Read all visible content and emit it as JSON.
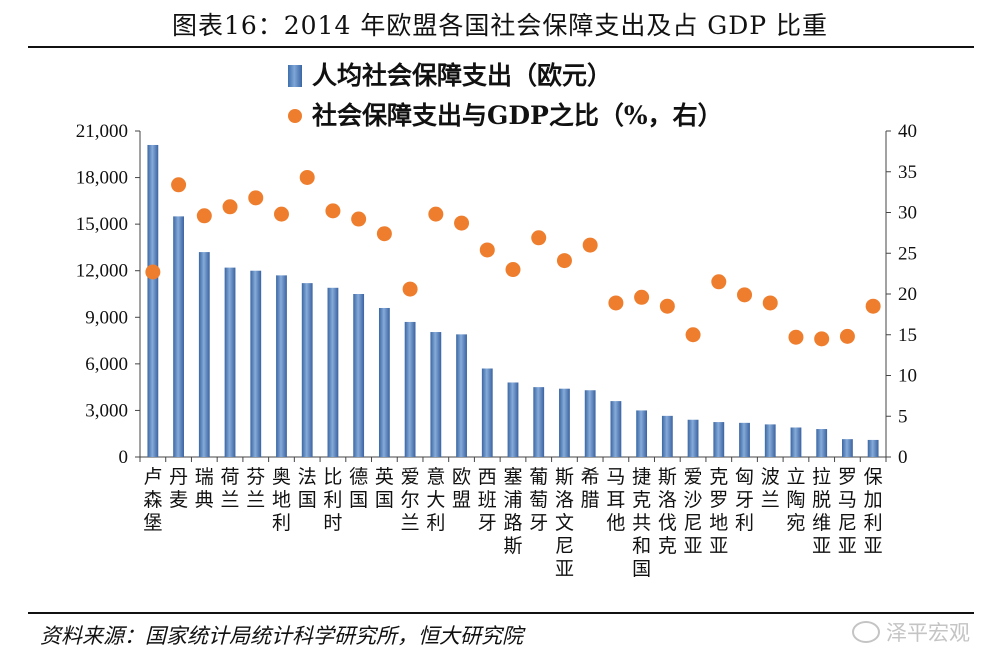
{
  "chart_data": {
    "type": "bar",
    "title": "图表16：2014年欧盟各国社会保障支出及占GDP比重",
    "categories": [
      "卢森堡",
      "丹麦",
      "瑞典",
      "荷兰",
      "芬兰",
      "奥地利",
      "法国",
      "比利时",
      "德国",
      "英国",
      "爱尔兰",
      "意大利",
      "欧盟",
      "西班牙",
      "塞浦路斯",
      "葡萄牙",
      "斯洛文尼亚",
      "希腊",
      "马耳他",
      "捷克共和国",
      "斯洛伐克",
      "爱沙尼亚",
      "克罗地亚",
      "匈牙利",
      "波兰",
      "立陶宛",
      "拉脱维亚",
      "罗马尼亚",
      "保加利亚"
    ],
    "series": [
      {
        "name": "人均社会保障支出（欧元）",
        "kind": "bar",
        "axis": "left",
        "color": "#4a78b5",
        "values": [
          20100,
          15500,
          13200,
          12200,
          12000,
          11700,
          11200,
          10900,
          10500,
          9600,
          8700,
          8050,
          7900,
          5700,
          4800,
          4500,
          4400,
          4300,
          3600,
          3000,
          2650,
          2400,
          2250,
          2200,
          2100,
          1900,
          1800,
          1150,
          1100
        ]
      },
      {
        "name": "社会保障支出与GDP之比（%，右）",
        "kind": "scatter",
        "axis": "right",
        "color": "#ee7e2d",
        "values": [
          22.7,
          33.4,
          29.6,
          30.7,
          31.8,
          29.8,
          34.3,
          30.2,
          29.2,
          27.4,
          20.6,
          29.8,
          28.7,
          25.4,
          23.0,
          26.9,
          24.1,
          26.0,
          18.9,
          19.6,
          18.5,
          15.0,
          21.5,
          19.9,
          18.9,
          14.7,
          14.5,
          14.8,
          18.5
        ]
      }
    ],
    "ylim_left": [
      0,
      21000
    ],
    "yticks_left": [
      "0",
      "3,000",
      "6,000",
      "9,000",
      "12,000",
      "15,000",
      "18,000",
      "21,000"
    ],
    "ylim_right": [
      0,
      40
    ],
    "yticks_right": [
      "0",
      "5",
      "10",
      "15",
      "20",
      "25",
      "30",
      "35",
      "40"
    ]
  },
  "title": "图表16：2014 年欧盟各国社会保障支出及占 GDP 比重",
  "legend": {
    "bar_label": "人均社会保障支出（欧元）",
    "dot_label": "社会保障支出与GDP之比（%，右）"
  },
  "source": "资料来源：国家统计局统计科学研究所，恒大研究院",
  "watermark": "泽平宏观"
}
